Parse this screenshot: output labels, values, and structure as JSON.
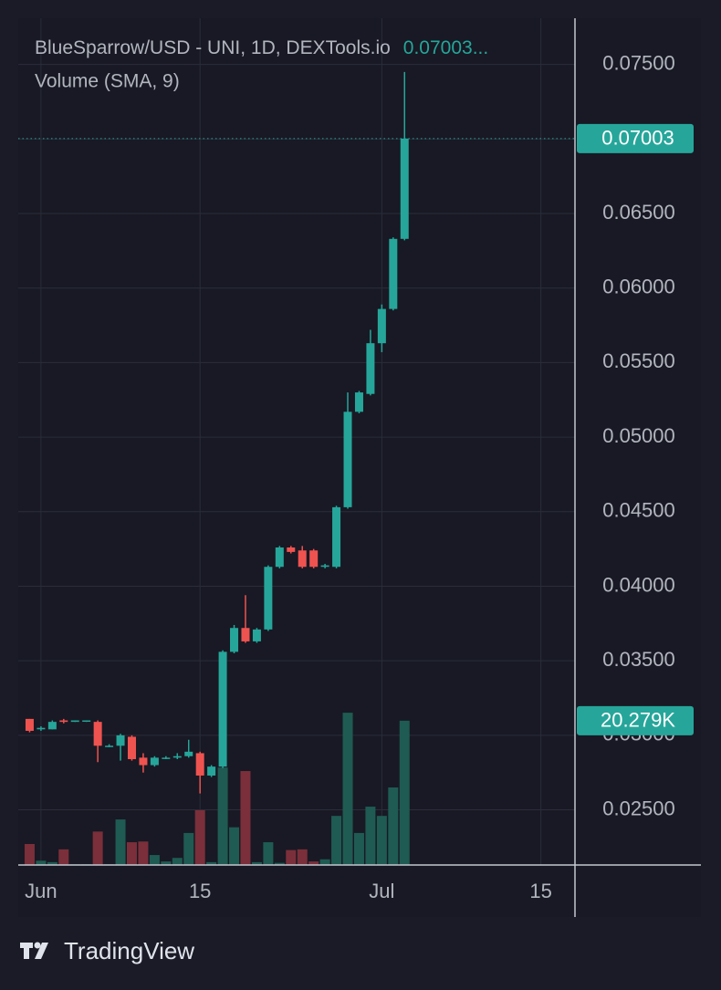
{
  "chart_data": {
    "type": "candlestick",
    "title": "BlueSparrow/USD - UNI, 1D, DEXTools.io",
    "title_price": "0.07003...",
    "subtitle": "Volume (SMA, 9)",
    "x": [
      "05-31",
      "06-01",
      "06-02",
      "06-03",
      "06-04",
      "06-05",
      "06-06",
      "06-07",
      "06-08",
      "06-09",
      "06-10",
      "06-11",
      "06-12",
      "06-13",
      "06-14",
      "06-15",
      "06-16",
      "06-17",
      "06-18",
      "06-19",
      "06-20",
      "06-21",
      "06-22",
      "06-23",
      "06-24",
      "06-25",
      "06-26",
      "06-27",
      "06-28",
      "06-29",
      "06-30",
      "07-01",
      "07-02",
      "07-03"
    ],
    "open": [
      0.0311,
      0.0304,
      0.0304,
      0.031,
      0.0309,
      0.031,
      0.0309,
      0.0293,
      0.0293,
      0.0299,
      0.0285,
      0.028,
      0.0285,
      0.0285,
      0.0286,
      0.0288,
      0.0273,
      0.0279,
      0.0356,
      0.0372,
      0.0363,
      0.0371,
      0.0413,
      0.0426,
      0.0424,
      0.0424,
      0.0413,
      0.0413,
      0.0453,
      0.0517,
      0.0529,
      0.0563,
      0.0586,
      0.0633
    ],
    "high": [
      0.0311,
      0.0306,
      0.031,
      0.0311,
      0.031,
      0.031,
      0.031,
      0.0294,
      0.0301,
      0.03,
      0.0288,
      0.0286,
      0.0286,
      0.0288,
      0.0297,
      0.0289,
      0.028,
      0.0357,
      0.0374,
      0.0394,
      0.0372,
      0.0414,
      0.0427,
      0.0427,
      0.0427,
      0.0425,
      0.0415,
      0.0454,
      0.053,
      0.0531,
      0.0572,
      0.0589,
      0.0634,
      0.0745
    ],
    "low": [
      0.0302,
      0.0303,
      0.0304,
      0.0308,
      0.0309,
      0.0309,
      0.0282,
      0.0292,
      0.0283,
      0.0283,
      0.0275,
      0.0279,
      0.0284,
      0.0284,
      0.0285,
      0.0261,
      0.0272,
      0.0278,
      0.0355,
      0.0362,
      0.0362,
      0.037,
      0.0412,
      0.0422,
      0.0412,
      0.0412,
      0.0412,
      0.0412,
      0.0452,
      0.0516,
      0.0528,
      0.0557,
      0.0585,
      0.0632
    ],
    "close": [
      0.0303,
      0.0305,
      0.0309,
      0.0309,
      0.031,
      0.031,
      0.0293,
      0.0293,
      0.03,
      0.0284,
      0.028,
      0.0285,
      0.0285,
      0.0286,
      0.0289,
      0.0273,
      0.0279,
      0.0356,
      0.0372,
      0.0363,
      0.0371,
      0.0413,
      0.0426,
      0.0423,
      0.0413,
      0.0413,
      0.0414,
      0.0453,
      0.0517,
      0.053,
      0.0563,
      0.0586,
      0.0633,
      0.07003
    ],
    "up_color": "#26a69a",
    "down_color": "#ef5350",
    "xlim": [
      "05-30",
      "07-18"
    ],
    "xticks": [
      {
        "value": "06-01",
        "label": "Jun"
      },
      {
        "value": "06-15",
        "label": "15"
      },
      {
        "value": "07-01",
        "label": "Jul"
      },
      {
        "value": "07-15",
        "label": "15"
      }
    ],
    "ylim": [
      0.0213,
      0.0781
    ],
    "yticks": [
      {
        "value": 0.025,
        "label": "0.02500"
      },
      {
        "value": 0.03,
        "label": "0.03000"
      },
      {
        "value": 0.035,
        "label": "0.03500"
      },
      {
        "value": 0.04,
        "label": "0.04000"
      },
      {
        "value": 0.045,
        "label": "0.04500"
      },
      {
        "value": 0.05,
        "label": "0.05000"
      },
      {
        "value": 0.055,
        "label": "0.05500"
      },
      {
        "value": 0.06,
        "label": "0.06000"
      },
      {
        "value": 0.065,
        "label": "0.06500"
      },
      {
        "value": 0.07,
        "label": "0.07000"
      },
      {
        "value": 0.075,
        "label": "0.07500"
      }
    ],
    "grid": true,
    "last_price": {
      "value": 0.07003,
      "label": "0.07003"
    },
    "volume": {
      "values": [
        2.95,
        0.6,
        0.4,
        2.2,
        0.1,
        0.1,
        4.7,
        0.1,
        6.4,
        3.2,
        3.3,
        1.4,
        0.5,
        1.0,
        4.5,
        7.7,
        0.4,
        13.7,
        5.3,
        13.2,
        0.4,
        3.2,
        0.3,
        2.1,
        2.2,
        0.5,
        0.8,
        6.9,
        21.4,
        4.5,
        8.2,
        6.9,
        10.9,
        20.279
      ],
      "value_labels": [
        null,
        null,
        null,
        null,
        null,
        null,
        null,
        null,
        null,
        null,
        null,
        null,
        null,
        null,
        null,
        null,
        null,
        null,
        null,
        null,
        null,
        null,
        null,
        null,
        null,
        null,
        null,
        null,
        null,
        null,
        null,
        null,
        null,
        "20.279K"
      ],
      "ylim": [
        0,
        119
      ],
      "up_color": "#1f5b52",
      "down_color": "#7b2f3a"
    }
  },
  "footer": {
    "brand": "TradingView"
  }
}
